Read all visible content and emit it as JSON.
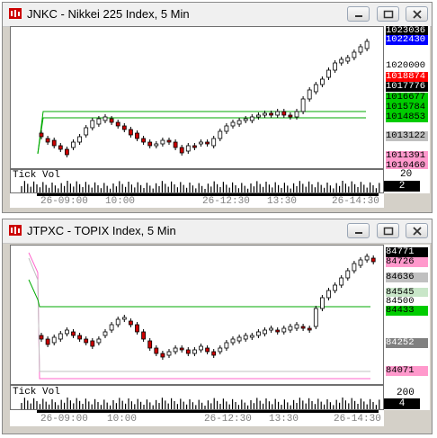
{
  "windows": [
    {
      "title": "JNKC - Nikkei 225 Index, 5 Min",
      "prices": [
        {
          "text": "1023036",
          "bg": "#000000",
          "fg": "#ffffff"
        },
        {
          "text": "1022430",
          "bg": "#0000ff",
          "fg": "#ffffff"
        },
        {
          "text": "1020000",
          "bg": "#ffffff",
          "fg": "#000000"
        },
        {
          "text": "1018874",
          "bg": "#ff0000",
          "fg": "#ffffff"
        },
        {
          "text": "1017776",
          "bg": "#000000",
          "fg": "#ffffff"
        },
        {
          "text": "1016677",
          "bg": "#00cc00",
          "fg": "#000000"
        },
        {
          "text": "1015784",
          "bg": "#00cc00",
          "fg": "#000000"
        },
        {
          "text": "1014853",
          "bg": "#00cc00",
          "fg": "#000000"
        },
        {
          "text": "1013122",
          "bg": "#c0c0c0",
          "fg": "#000000"
        },
        {
          "text": "1011391",
          "bg": "#ff99cc",
          "fg": "#000000"
        },
        {
          "text": "1010460",
          "bg": "#ff99cc",
          "fg": "#000000"
        }
      ],
      "vol_label": "Tick Vol",
      "vol_scale": "20",
      "vol_value": "2",
      "time_labels": [
        "26-09:00",
        "10:00",
        "26-12:30",
        "13:30",
        "26-14:30"
      ]
    },
    {
      "title": "JTPXC - TOPIX Index, 5 Min",
      "prices": [
        {
          "text": "84771",
          "bg": "#000000",
          "fg": "#ffffff"
        },
        {
          "text": "84726",
          "bg": "#ff99cc",
          "fg": "#000000"
        },
        {
          "text": "84636",
          "bg": "#c0c0c0",
          "fg": "#000000"
        },
        {
          "text": "84545",
          "bg": "#c8e6c8",
          "fg": "#000000"
        },
        {
          "text": "84500",
          "bg": "#ffffff",
          "fg": "#000000"
        },
        {
          "text": "84433",
          "bg": "#00cc00",
          "fg": "#000000"
        },
        {
          "text": "84252",
          "bg": "#808080",
          "fg": "#ffffff"
        },
        {
          "text": "84071",
          "bg": "#ff99cc",
          "fg": "#000000"
        }
      ],
      "vol_label": "Tick Vol",
      "vol_scale": "200",
      "vol_value": "4",
      "time_labels": [
        "26-09:00",
        "10:00",
        "26-12:30",
        "13:30",
        "26-14:30"
      ]
    }
  ],
  "window_buttons": [
    "minimize-icon",
    "maximize-icon",
    "close-icon"
  ]
}
